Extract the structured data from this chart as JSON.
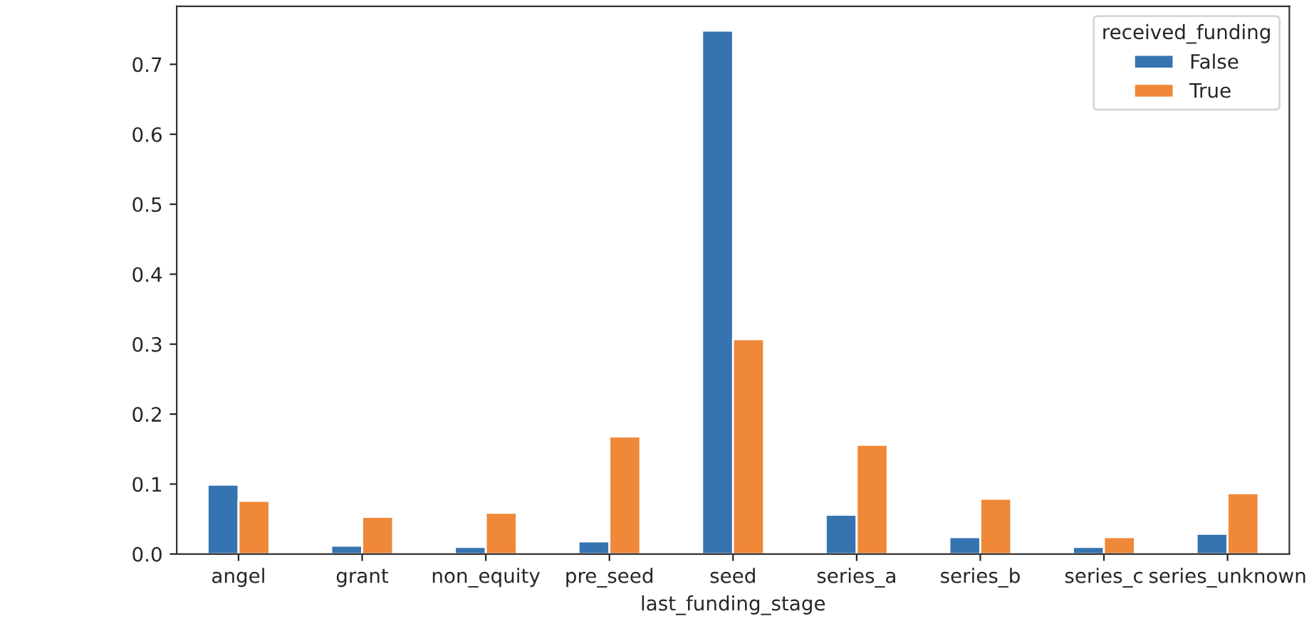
{
  "chart_data": {
    "type": "bar",
    "xlabel": "last_funding_stage",
    "legend_title": "received_funding",
    "categories": [
      "angel",
      "grant",
      "non_equity",
      "pre_seed",
      "seed",
      "series_a",
      "series_b",
      "series_c",
      "series_unknown"
    ],
    "series": [
      {
        "name": "False",
        "color": "#3574b0",
        "values": [
          0.099,
          0.012,
          0.01,
          0.018,
          0.748,
          0.056,
          0.024,
          0.01,
          0.029
        ]
      },
      {
        "name": "True",
        "color": "#ef8838",
        "values": [
          0.076,
          0.053,
          0.059,
          0.168,
          0.307,
          0.156,
          0.079,
          0.024,
          0.087
        ]
      }
    ],
    "ylim": [
      0,
      0.783
    ],
    "yticks": [
      {
        "value": 0,
        "label": "0.0"
      },
      0.1,
      0.2,
      0.3,
      0.4,
      0.5,
      0.6,
      0.7
    ],
    "legend": "top right",
    "grid": false
  }
}
